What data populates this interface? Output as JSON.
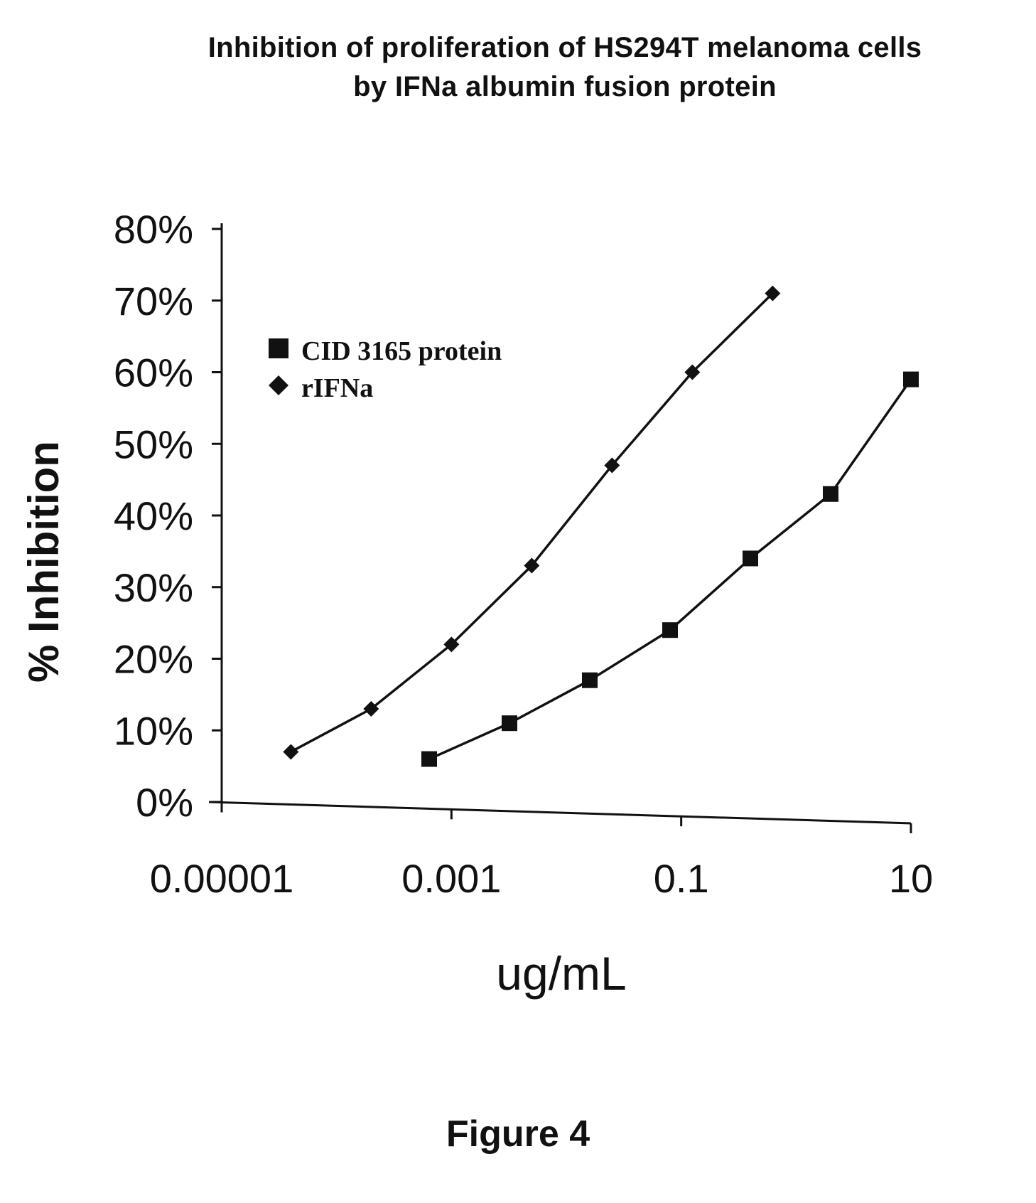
{
  "page": {
    "title_line1": "Inhibition of proliferation of HS294T melanoma cells",
    "title_line2": "by IFNa albumin fusion protein",
    "figure_label": "Figure 4"
  },
  "chart_data": {
    "type": "line",
    "xlabel": "ug/mL",
    "ylabel": "% Inhibition",
    "x_scale": "log",
    "xlim": [
      1e-05,
      10
    ],
    "ylim": [
      0,
      80
    ],
    "x_ticks": [
      1e-05,
      0.001,
      0.1,
      10
    ],
    "x_tick_labels": [
      "0.00001",
      "0.001",
      "0.1",
      "10"
    ],
    "y_ticks": [
      0,
      10,
      20,
      30,
      40,
      50,
      60,
      70,
      80
    ],
    "y_tick_labels": [
      "0%",
      "10%",
      "20%",
      "30%",
      "40%",
      "50%",
      "60%",
      "70%",
      "80%"
    ],
    "grid": false,
    "legend_position": "top-left",
    "series": [
      {
        "name": "CID 3165 protein",
        "marker": "square",
        "color": "#111111",
        "x": [
          0.00064,
          0.0032,
          0.016,
          0.08,
          0.4,
          2,
          10
        ],
        "y": [
          6,
          11,
          17,
          24,
          34,
          43,
          59
        ]
      },
      {
        "name": "rIFNa",
        "marker": "diamond",
        "color": "#111111",
        "x": [
          4e-05,
          0.0002,
          0.001,
          0.005,
          0.025,
          0.125,
          0.625
        ],
        "y": [
          7,
          13,
          22,
          33,
          47,
          60,
          71
        ]
      }
    ]
  }
}
